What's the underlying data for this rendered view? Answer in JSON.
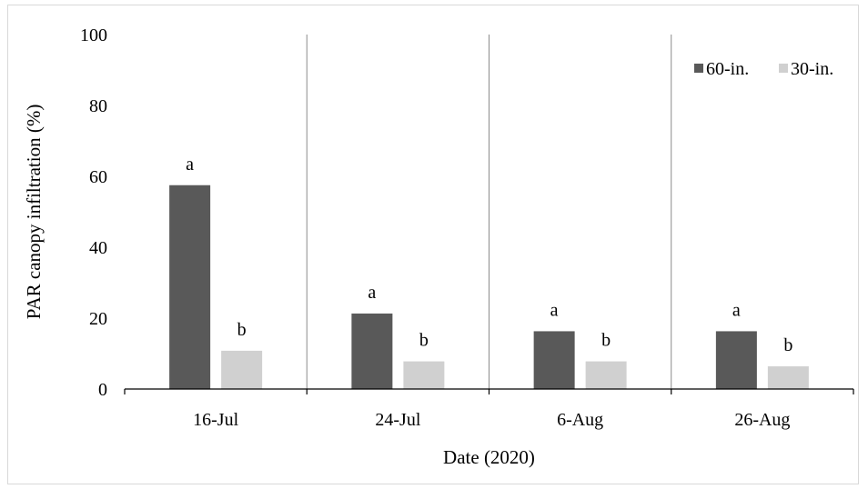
{
  "chart_data": {
    "type": "bar",
    "categories": [
      "16-Jul",
      "24-Jul",
      "6-Aug",
      "26-Aug"
    ],
    "series": [
      {
        "name": "60-in.",
        "color": "#595959",
        "values": [
          57.5,
          21.3,
          16.3,
          16.3
        ],
        "labels": [
          "a",
          "a",
          "a",
          "a"
        ]
      },
      {
        "name": "30-in.",
        "color": "#d0d0d0",
        "values": [
          10.8,
          7.8,
          7.8,
          6.4
        ],
        "labels": [
          "b",
          "b",
          "b",
          "b"
        ]
      }
    ],
    "xlabel": "Date (2020)",
    "ylabel": "PAR canopy infiltration (%)",
    "ylim": [
      0,
      100
    ],
    "yticks": [
      "0",
      "20",
      "40",
      "60",
      "80",
      "100"
    ],
    "grid": false,
    "legend_position": "top-right"
  }
}
